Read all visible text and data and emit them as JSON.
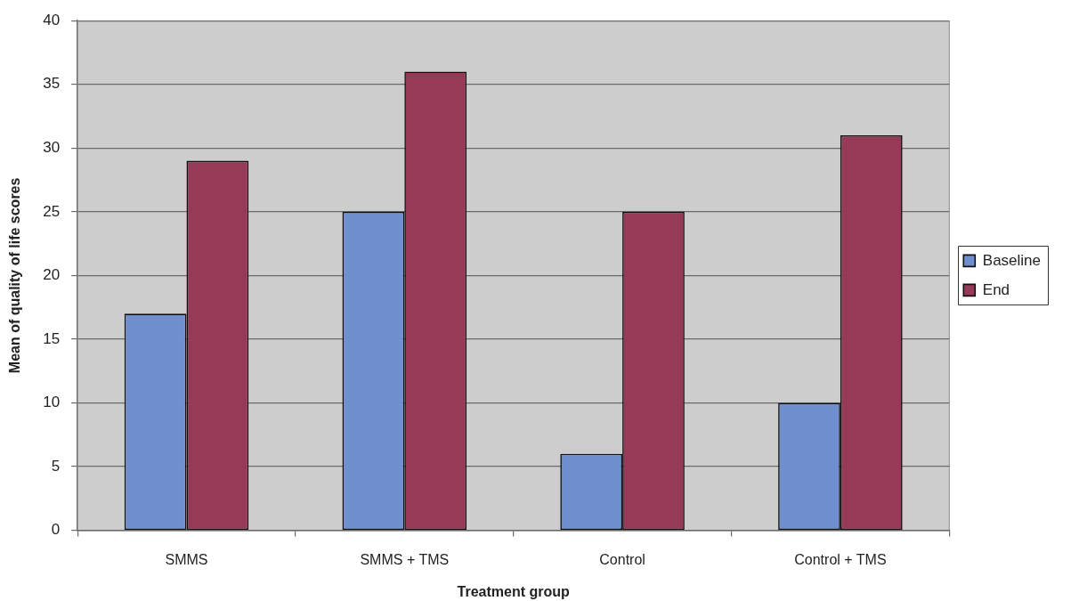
{
  "chart_data": {
    "type": "bar",
    "xlabel": "Treatment group",
    "ylabel": "Mean of quality of life scores",
    "categories": [
      "SMMS",
      "SMMS + TMS",
      "Control",
      "Control + TMS"
    ],
    "series": [
      {
        "name": "Baseline",
        "color": "#6f8fcf",
        "values": [
          17,
          25,
          6,
          10
        ]
      },
      {
        "name": "End",
        "color": "#963a58",
        "values": [
          29,
          36,
          25,
          31
        ]
      }
    ],
    "ylim": [
      0,
      40
    ],
    "yticks": [
      0,
      5,
      10,
      15,
      20,
      25,
      30,
      35,
      40
    ],
    "grid": "y",
    "legend": "right"
  }
}
